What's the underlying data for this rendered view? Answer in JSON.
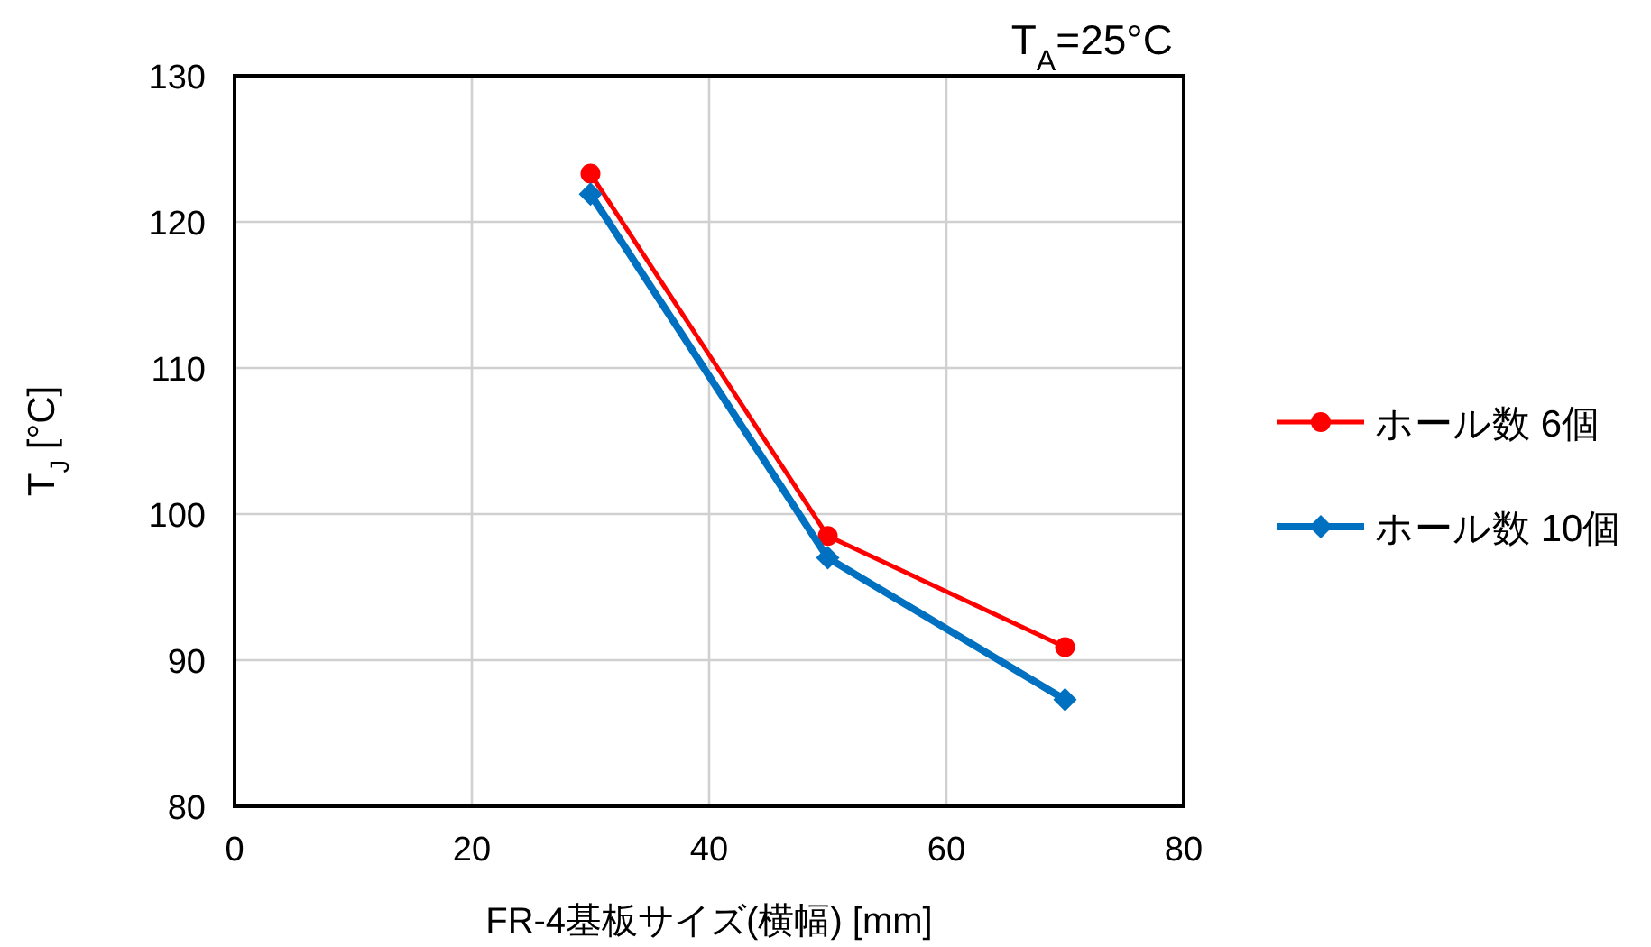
{
  "chart_data": {
    "type": "line",
    "annotations": [
      "T$_{A}$=25°C"
    ],
    "xlabel": "FR-4基板サイズ(横幅) [mm]",
    "ylabel": "T$_{J}$ [°C]",
    "xlim": [
      0,
      80
    ],
    "xticks": [
      0,
      20,
      40,
      60,
      80
    ],
    "ylim": [
      80,
      130
    ],
    "yticks": [
      80,
      90,
      100,
      110,
      120,
      130
    ],
    "grid": true,
    "legend": "right",
    "series": [
      {
        "name": "ホール数 6個",
        "color": "#ff0000",
        "marker": "circle",
        "x": [
          30,
          50,
          70
        ],
        "values": [
          123.3,
          98.5,
          90.9
        ]
      },
      {
        "name": "ホール数 10個",
        "color": "#0070c0",
        "marker": "diamond",
        "x": [
          30,
          50,
          70
        ],
        "values": [
          121.9,
          97.0,
          87.3
        ]
      }
    ]
  }
}
